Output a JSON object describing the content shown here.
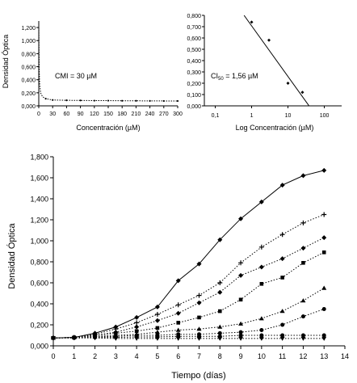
{
  "chart_data": [
    {
      "type": "line",
      "xlabel": "Concentración (µM)",
      "ylabel": "Densidad Óptica",
      "annotation": "CMI = 30 µM",
      "xlim": [
        0,
        300
      ],
      "ylim": [
        0,
        1.3
      ],
      "x_ticks": [
        "0",
        "30",
        "60",
        "90",
        "120",
        "150",
        "180",
        "210",
        "240",
        "270",
        "300"
      ],
      "y_ticks": [
        "0,000",
        "0,200",
        "0,400",
        "0,600",
        "0,800",
        "1,000",
        "1,200"
      ],
      "x_tick_values": [
        0,
        30,
        60,
        90,
        120,
        150,
        180,
        210,
        240,
        270,
        300
      ],
      "y_tick_values": [
        0,
        0.2,
        0.4,
        0.6,
        0.8,
        1.0,
        1.2
      ],
      "series": [
        {
          "x": [
            0.1,
            0.5,
            1,
            2,
            4,
            8,
            15,
            30,
            60,
            90,
            120,
            150,
            180,
            210,
            240,
            270,
            300
          ],
          "values": [
            1.2,
            0.85,
            0.55,
            0.32,
            0.2,
            0.14,
            0.11,
            0.09,
            0.085,
            0.083,
            0.08,
            0.08,
            0.078,
            0.077,
            0.076,
            0.075,
            0.075
          ]
        }
      ]
    },
    {
      "type": "scatter",
      "xlabel": "Log Concentración (µM)",
      "annotation_main": "CI",
      "annotation_sub": "50",
      "annotation_rest": " = 1,56 µM",
      "x_scale": "log",
      "xlim": [
        0.05,
        300
      ],
      "ylim": [
        0,
        0.8
      ],
      "x_ticks": [
        "0,1",
        "1",
        "10",
        "100"
      ],
      "x_tick_values": [
        0.1,
        1,
        10,
        100
      ],
      "y_ticks": [
        "0,000",
        "0,100",
        "0,200",
        "0,300",
        "0,400",
        "0,500",
        "0,600",
        "0,700",
        "0,800"
      ],
      "y_tick_values": [
        0,
        0.1,
        0.2,
        0.3,
        0.4,
        0.5,
        0.6,
        0.7,
        0.8
      ],
      "points": {
        "x": [
          1,
          3,
          10,
          25
        ],
        "values": [
          0.74,
          0.58,
          0.2,
          0.12
        ]
      },
      "trendline": {
        "x": [
          0.62,
          38
        ],
        "values": [
          0.8,
          0.0
        ]
      }
    },
    {
      "type": "line",
      "xlabel": "Tiempo (días)",
      "ylabel": "Densidad Óptica",
      "xlim": [
        0,
        14
      ],
      "ylim": [
        0,
        1.8
      ],
      "x_ticks": [
        "0",
        "1",
        "2",
        "3",
        "4",
        "5",
        "6",
        "7",
        "8",
        "9",
        "10",
        "11",
        "12",
        "13",
        "14"
      ],
      "x_tick_values": [
        0,
        1,
        2,
        3,
        4,
        5,
        6,
        7,
        8,
        9,
        10,
        11,
        12,
        13,
        14
      ],
      "y_ticks": [
        "0,000",
        "0,200",
        "0,400",
        "0,600",
        "0,800",
        "1,000",
        "1,200",
        "1,400",
        "1,600",
        "1,800"
      ],
      "y_tick_values": [
        0,
        0.2,
        0.4,
        0.6,
        0.8,
        1.0,
        1.2,
        1.4,
        1.6,
        1.8
      ],
      "x": [
        0,
        1,
        2,
        3,
        4,
        5,
        6,
        7,
        8,
        9,
        10,
        11,
        12,
        13
      ],
      "series": [
        {
          "marker": "diamond",
          "style": "solid",
          "values": [
            0.075,
            0.08,
            0.12,
            0.18,
            0.27,
            0.37,
            0.62,
            0.78,
            1.01,
            1.21,
            1.37,
            1.53,
            1.62,
            1.67
          ]
        },
        {
          "marker": "plus",
          "style": "dotted",
          "values": [
            0.075,
            0.08,
            0.11,
            0.16,
            0.22,
            0.3,
            0.39,
            0.48,
            0.6,
            0.79,
            0.94,
            1.06,
            1.17,
            1.25
          ]
        },
        {
          "marker": "diamond",
          "style": "dotted",
          "values": [
            0.075,
            0.08,
            0.1,
            0.13,
            0.18,
            0.24,
            0.31,
            0.41,
            0.51,
            0.67,
            0.75,
            0.83,
            0.93,
            1.03
          ]
        },
        {
          "marker": "square",
          "style": "dotted",
          "values": [
            0.075,
            0.08,
            0.1,
            0.12,
            0.14,
            0.17,
            0.22,
            0.27,
            0.33,
            0.44,
            0.59,
            0.65,
            0.79,
            0.89
          ]
        },
        {
          "marker": "triangle",
          "style": "dotted",
          "values": [
            0.075,
            0.08,
            0.09,
            0.1,
            0.11,
            0.13,
            0.15,
            0.16,
            0.18,
            0.21,
            0.26,
            0.33,
            0.43,
            0.55
          ]
        },
        {
          "marker": "circle",
          "style": "dotted",
          "values": [
            0.075,
            0.08,
            0.085,
            0.09,
            0.1,
            0.1,
            0.11,
            0.11,
            0.12,
            0.13,
            0.15,
            0.2,
            0.28,
            0.35
          ]
        },
        {
          "marker": "circle",
          "style": "dotted",
          "values": [
            0.075,
            0.075,
            0.08,
            0.08,
            0.085,
            0.085,
            0.09,
            0.09,
            0.09,
            0.1,
            0.1,
            0.1,
            0.1,
            0.1
          ]
        },
        {
          "marker": "triangle-down",
          "style": "dotted",
          "values": [
            0.075,
            0.075,
            0.075,
            0.07,
            0.07,
            0.07,
            0.07,
            0.07,
            0.07,
            0.07,
            0.07,
            0.07,
            0.07,
            0.07
          ]
        }
      ]
    }
  ]
}
